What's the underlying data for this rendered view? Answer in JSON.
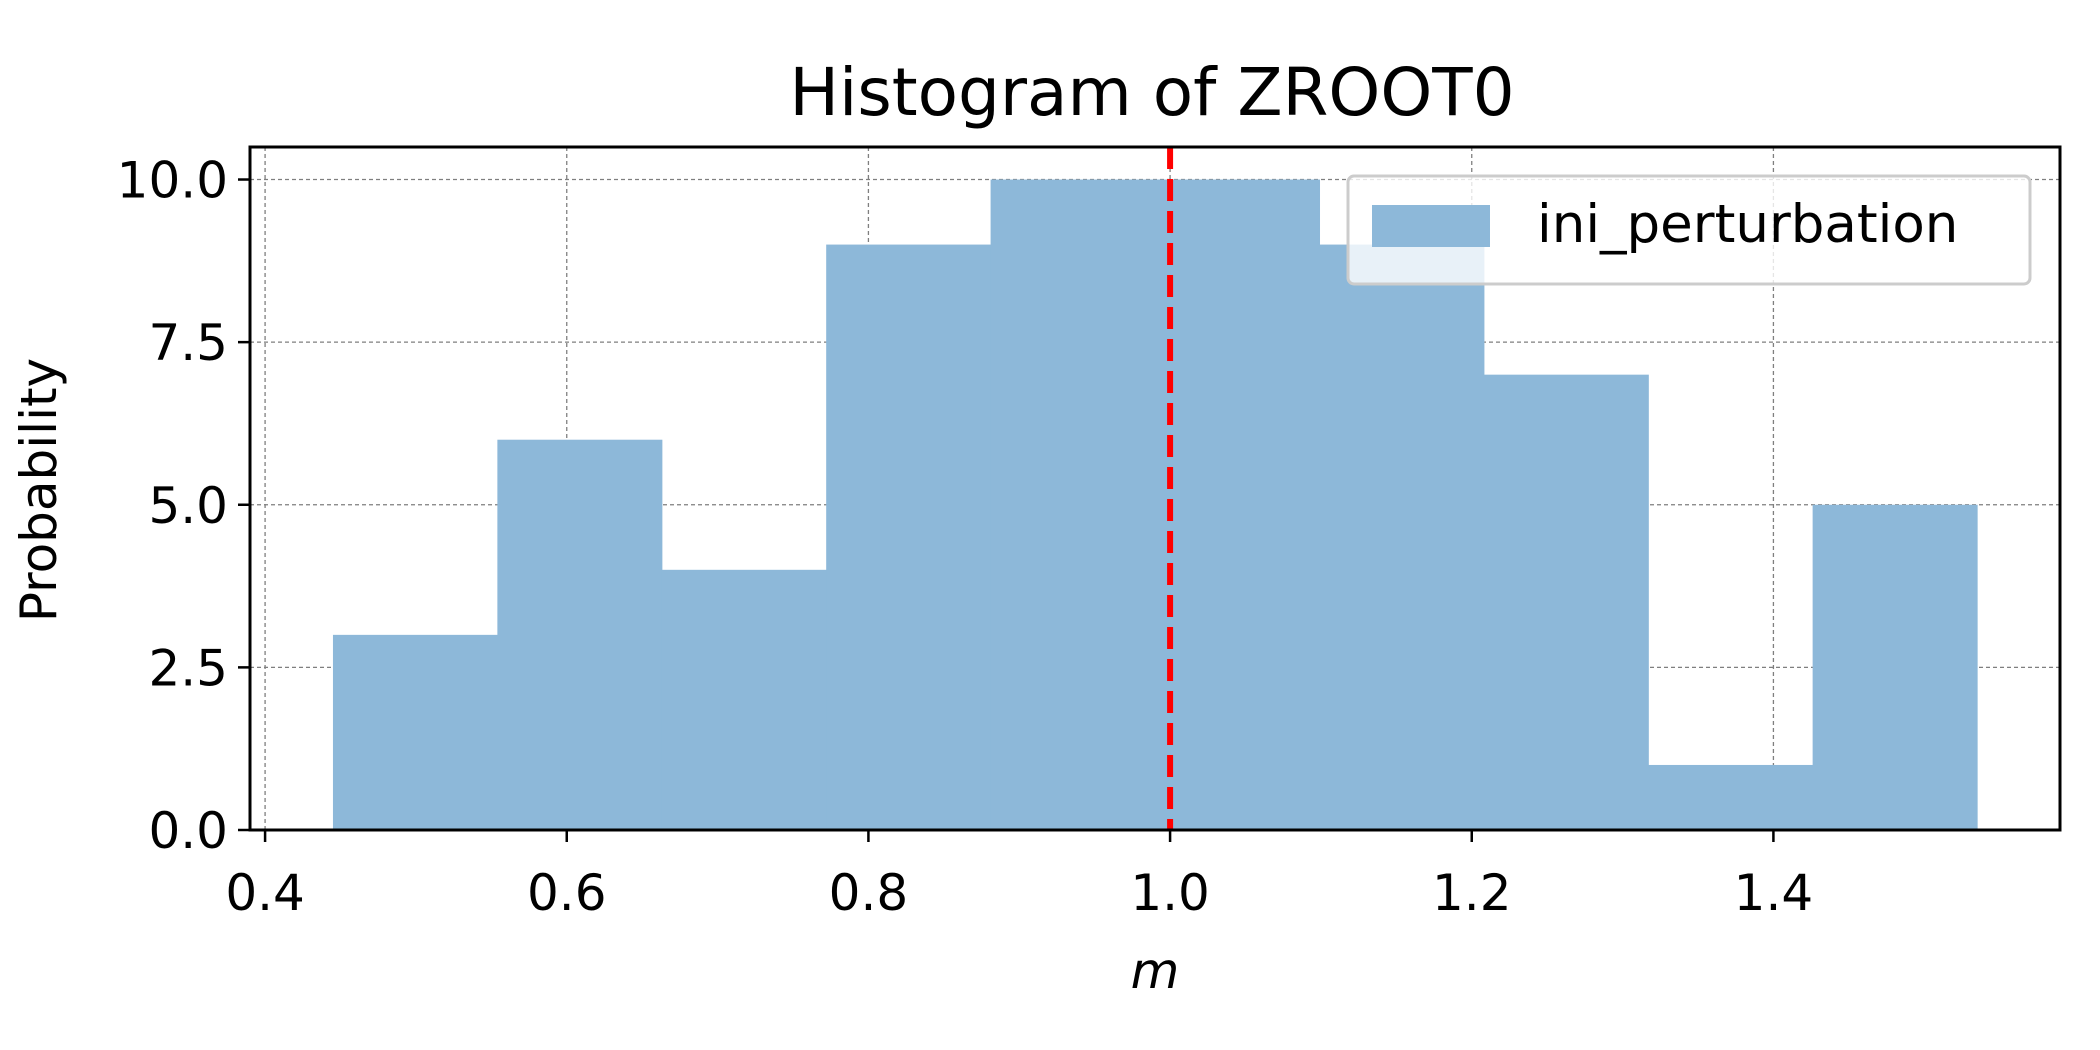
{
  "chart_data": {
    "type": "histogram",
    "title": "Histogram of ZROOT0",
    "xlabel": "m",
    "ylabel": "Probability",
    "xlim": [
      0.39,
      1.59
    ],
    "ylim": [
      0,
      10.5
    ],
    "xticks": [
      0.4,
      0.6,
      0.8,
      1.0,
      1.2,
      1.4
    ],
    "xtick_labels": [
      "0.4",
      "0.6",
      "0.8",
      "1.0",
      "1.2",
      "1.4"
    ],
    "yticks": [
      0,
      2.5,
      5.0,
      7.5,
      10.0
    ],
    "ytick_labels": [
      "0.0",
      "2.5",
      "5.0",
      "7.5",
      "10.0"
    ],
    "grid": true,
    "legend_position": "top-right",
    "series": [
      {
        "name": "ini_perturbation",
        "color": "#8db8d9",
        "bin_edges": [
          0.445,
          0.554,
          0.663,
          0.772,
          0.881,
          0.99,
          1.099,
          1.208,
          1.317,
          1.426,
          1.535
        ],
        "values": [
          3,
          6,
          4,
          9,
          10,
          10,
          9,
          7,
          1,
          5
        ]
      }
    ],
    "reference_line": {
      "x": 1.0,
      "color": "#ff0000",
      "style": "dashed"
    }
  }
}
